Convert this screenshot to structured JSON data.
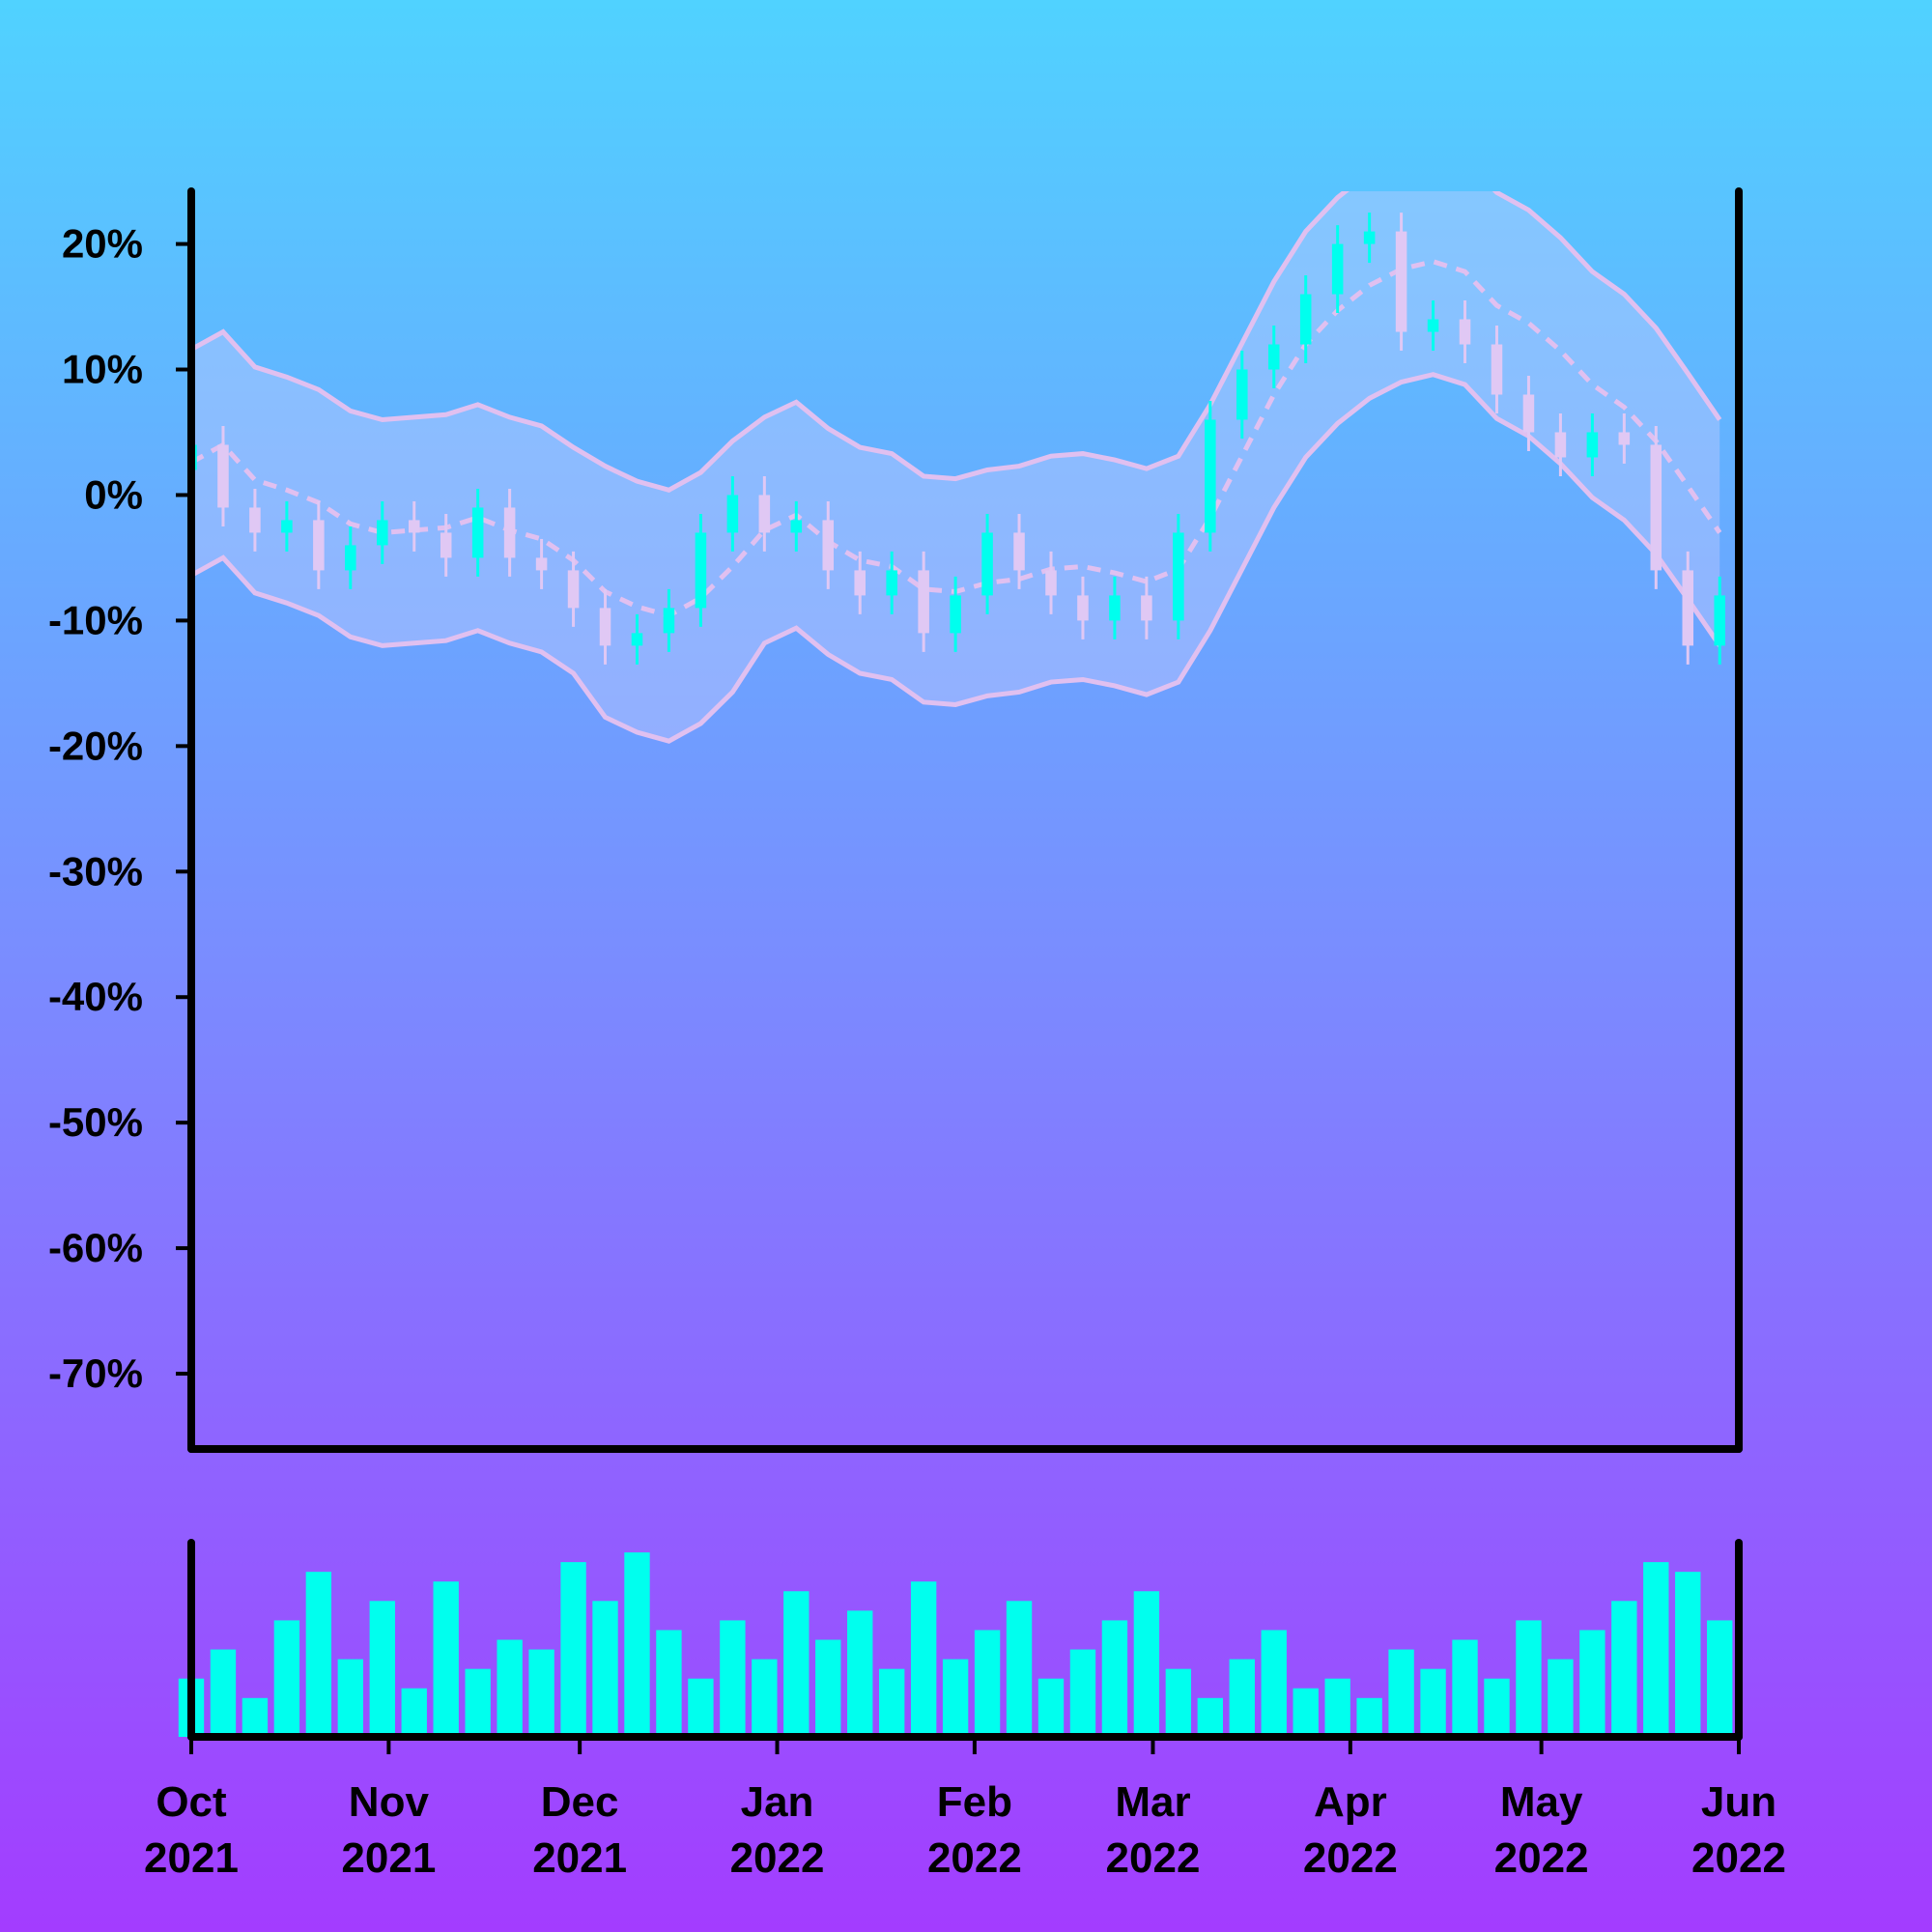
{
  "chart_data": {
    "type": "candlestick",
    "x": [
      0,
      5,
      10,
      15,
      20,
      25,
      30,
      35,
      40,
      45,
      50,
      55,
      60,
      65,
      70,
      75,
      80,
      85,
      90,
      95,
      100,
      105,
      110,
      115,
      120,
      125,
      130,
      135,
      140,
      145,
      150,
      155,
      160,
      165,
      170,
      175,
      180,
      185,
      190,
      195,
      200,
      205,
      210,
      215,
      220,
      225,
      230,
      235,
      240
    ],
    "open": [
      2,
      4,
      -1,
      -3,
      -2,
      -6,
      -4,
      -2,
      -3,
      -5,
      -1,
      -5,
      -6,
      -9,
      -12,
      -11,
      -9,
      -3,
      0,
      -3,
      -2,
      -6,
      -8,
      -6,
      -11,
      -8,
      -3,
      -6,
      -8,
      -10,
      -8,
      -10,
      -3,
      6,
      10,
      12,
      16,
      20,
      21,
      13,
      14,
      12,
      8,
      5,
      3,
      5,
      4,
      -6,
      -12
    ],
    "high": [
      5.5,
      5.5,
      0.5,
      -0.5,
      -0.5,
      -2.5,
      -0.5,
      -0.5,
      -1.5,
      0.5,
      0.5,
      -3.5,
      -4.5,
      -7.5,
      -9.5,
      -7.5,
      -1.5,
      1.5,
      1.5,
      -0.5,
      -0.5,
      -4.5,
      -4.5,
      -4.5,
      -6.5,
      -1.5,
      -1.5,
      -4.5,
      -6.5,
      -6.5,
      -6.5,
      -1.5,
      7.5,
      11.5,
      13.5,
      17.5,
      21.5,
      22.5,
      22.5,
      15.5,
      15.5,
      13.5,
      9.5,
      6.5,
      6.5,
      6.5,
      5.5,
      -4.5,
      -6.5
    ],
    "low": [
      0.5,
      -2.5,
      -4.5,
      -4.5,
      -7.5,
      -7.5,
      -5.5,
      -4.5,
      -6.5,
      -6.5,
      -6.5,
      -7.5,
      -10.5,
      -13.5,
      -13.5,
      -12.5,
      -10.5,
      -4.5,
      -4.5,
      -4.5,
      -7.5,
      -9.5,
      -9.5,
      -12.5,
      -12.5,
      -9.5,
      -7.5,
      -9.5,
      -11.5,
      -11.5,
      -11.5,
      -11.5,
      -4.5,
      4.5,
      8.5,
      10.5,
      14.5,
      18.5,
      11.5,
      11.5,
      10.5,
      6.5,
      3.5,
      1.5,
      1.5,
      2.5,
      -7.5,
      -13.5,
      -13.5
    ],
    "close": [
      4,
      -1,
      -3,
      -2,
      -6,
      -4,
      -2,
      -3,
      -5,
      -1,
      -5,
      -6,
      -9,
      -12,
      -11,
      -9,
      -3,
      0,
      -3,
      -2,
      -6,
      -8,
      -6,
      -11,
      -8,
      -3,
      -6,
      -8,
      -10,
      -8,
      -10,
      -3,
      6,
      10,
      12,
      16,
      20,
      21,
      13,
      14,
      12,
      8,
      5,
      3,
      5,
      4,
      -6,
      -12,
      -8
    ],
    "band_upper": [
      11.6,
      13,
      10.2,
      9.4,
      8.4,
      6.7,
      6,
      6.2,
      6.4,
      7.2,
      6.2,
      5.5,
      3.8,
      2.3,
      1.1,
      0.4,
      1.8,
      4.3,
      6.2,
      7.4,
      5.3,
      3.8,
      3.3,
      1.5,
      1.3,
      2,
      2.3,
      3.1,
      3.3,
      2.8,
      2.1,
      3.1,
      7.2,
      12.1,
      17,
      21,
      23.7,
      25.7,
      27,
      27.6,
      26.8,
      24.1,
      22.7,
      20.5,
      17.8,
      16,
      13.3,
      9.7,
      6
    ],
    "band_mid": [
      2.6,
      4,
      1.2,
      0.4,
      -0.6,
      -2.3,
      -3,
      -2.8,
      -2.6,
      -1.8,
      -2.8,
      -3.5,
      -5.2,
      -7.7,
      -8.9,
      -9.6,
      -8.2,
      -5.7,
      -2.8,
      -1.6,
      -3.7,
      -5.2,
      -5.7,
      -7.5,
      -7.7,
      -7,
      -6.7,
      -5.9,
      -5.7,
      -6.2,
      -6.9,
      -5.9,
      -1.8,
      3.1,
      8,
      12,
      14.7,
      16.7,
      18,
      18.6,
      17.8,
      15.1,
      13.7,
      11.5,
      8.8,
      7,
      4.3,
      0.7,
      -3
    ],
    "band_lower": [
      -6.4,
      -5,
      -7.8,
      -8.6,
      -9.6,
      -11.3,
      -12,
      -11.8,
      -11.6,
      -10.8,
      -11.8,
      -12.5,
      -14.2,
      -17.7,
      -18.9,
      -19.6,
      -18.2,
      -15.7,
      -11.8,
      -10.6,
      -12.7,
      -14.2,
      -14.7,
      -16.5,
      -16.7,
      -16,
      -15.7,
      -14.9,
      -14.7,
      -15.2,
      -15.9,
      -14.9,
      -10.8,
      -5.9,
      -1,
      3,
      5.7,
      7.7,
      9,
      9.6,
      8.8,
      6.1,
      4.7,
      2.5,
      -0.2,
      -2,
      -4.7,
      -8.3,
      -12
    ],
    "volume": [
      30,
      45,
      20,
      60,
      85,
      40,
      70,
      25,
      80,
      35,
      50,
      45,
      90,
      70,
      95,
      55,
      30,
      60,
      40,
      75,
      50,
      65,
      35,
      80,
      40,
      55,
      70,
      30,
      45,
      60,
      75,
      35,
      20,
      40,
      55,
      25,
      30,
      20,
      45,
      35,
      50,
      30,
      60,
      40,
      55,
      70,
      90,
      85,
      60
    ],
    "volume_lim": [
      0,
      100
    ],
    "up_color": "#00ffee",
    "down_color": "#e0c8f4",
    "band_color": "#e0c0f0",
    "xlim": [
      0,
      243
    ],
    "xticks": [
      {
        "value": 0,
        "label": "Oct 2021"
      },
      {
        "value": 31,
        "label": "Nov 2021"
      },
      {
        "value": 61,
        "label": "Dec 2021"
      },
      {
        "value": 92,
        "label": "Jan 2022"
      },
      {
        "value": 123,
        "label": "Feb 2022"
      },
      {
        "value": 151,
        "label": "Mar 2022"
      },
      {
        "value": 182,
        "label": "Apr 2022"
      },
      {
        "value": 212,
        "label": "May 2022"
      },
      {
        "value": 243,
        "label": "Jun 2022"
      }
    ],
    "ylim": [
      -76,
      24.2
    ],
    "yticks": [
      {
        "value": 20,
        "label": "20%"
      },
      {
        "value": 10,
        "label": "10%"
      },
      {
        "value": 0,
        "label": "0%"
      },
      {
        "value": -10,
        "label": "-10%"
      },
      {
        "value": -20,
        "label": "-20%"
      },
      {
        "value": -30,
        "label": "-30%"
      },
      {
        "value": -40,
        "label": "-40%"
      },
      {
        "value": -50,
        "label": "-50%"
      },
      {
        "value": -60,
        "label": "-60%"
      },
      {
        "value": -70,
        "label": "-70%"
      }
    ]
  }
}
